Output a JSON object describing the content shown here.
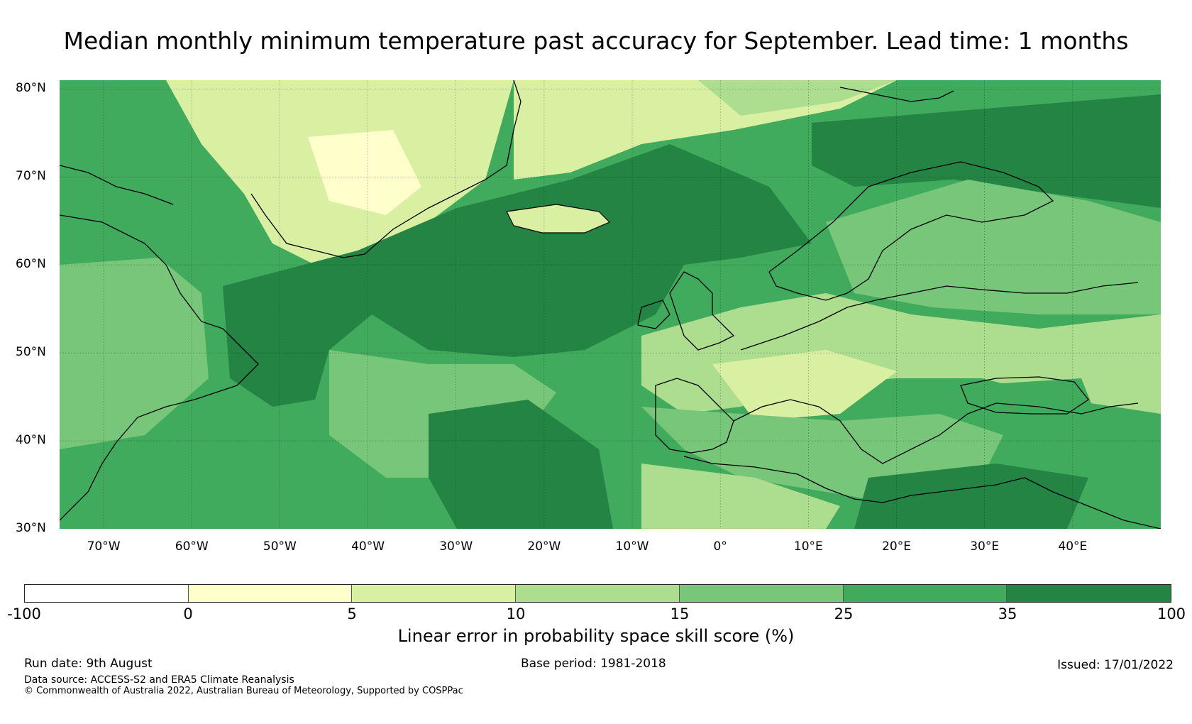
{
  "title": "Median monthly minimum temperature past accuracy for September. Lead time: 1 months",
  "map": {
    "lon_range": [
      -75,
      50
    ],
    "lat_range": [
      30,
      81
    ],
    "lat_labels": [
      "80°N",
      "70°N",
      "60°N",
      "50°N",
      "40°N",
      "30°N"
    ],
    "lat_values": [
      80,
      70,
      60,
      50,
      40,
      30
    ],
    "lon_labels": [
      "70°W",
      "60°W",
      "50°W",
      "40°W",
      "30°W",
      "20°W",
      "10°W",
      "0°",
      "10°E",
      "20°E",
      "30°E",
      "40°E"
    ],
    "lon_values": [
      -70,
      -60,
      -50,
      -40,
      -30,
      -20,
      -10,
      0,
      10,
      20,
      30,
      40
    ],
    "gridlines": true
  },
  "colorbar": {
    "ticks": [
      "-100",
      "0",
      "5",
      "10",
      "15",
      "25",
      "35",
      "100"
    ],
    "colors": [
      "#ffffff",
      "#ffffcc",
      "#d9f0a3",
      "#addd8e",
      "#78c679",
      "#41ab5d",
      "#238443"
    ],
    "label": "Linear error in probability space skill score (%)"
  },
  "footer": {
    "run_date": "Run date: 9th August",
    "base_period": "Base period: 1981-2018",
    "issued": "Issued: 17/01/2022",
    "data_source": "Data source: ACCESS-S2 and ERA5 Climate Reanalysis",
    "copyright": "© Commonwealth of Australia 2022, Australian Bureau of Meteorology, Supported by COSPPac"
  }
}
